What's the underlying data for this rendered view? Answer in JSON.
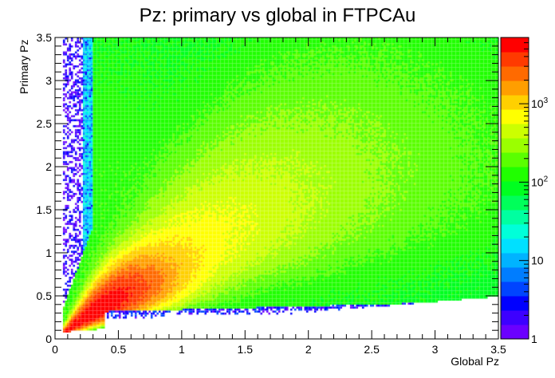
{
  "chart_data": {
    "type": "heatmap",
    "title": "Pz: primary vs global in FTPCAu",
    "xlabel": "Global Pz",
    "ylabel": "Primary Pz",
    "xlim": [
      0,
      3.5
    ],
    "ylim": [
      0,
      3.5
    ],
    "x_ticks": [
      "0",
      "0.5",
      "1",
      "1.5",
      "2",
      "2.5",
      "3",
      "3.5"
    ],
    "y_ticks": [
      "0",
      "0.5",
      "1",
      "1.5",
      "2",
      "2.5",
      "3",
      "3.5"
    ],
    "z_scale": "log",
    "z_range": [
      1,
      7000
    ],
    "z_ticks": [
      {
        "value": 1,
        "label": "1"
      },
      {
        "value": 10,
        "label": "10"
      },
      {
        "value": 100,
        "label": "10^2"
      },
      {
        "value": 1000,
        "label": "10^3"
      }
    ],
    "colorbar_position": "right",
    "palette": [
      "#6b00ff",
      "#3d00ff",
      "#0000ff",
      "#0044ff",
      "#007dff",
      "#00b3ff",
      "#00e0ff",
      "#00ffd9",
      "#00ffa0",
      "#00ff5a",
      "#00ff20",
      "#20ff00",
      "#5aff00",
      "#9bff00",
      "#ccff00",
      "#ffff00",
      "#ffd000",
      "#ff9e00",
      "#ff6a00",
      "#ff3a00",
      "#ff0000"
    ],
    "description_regions": [
      {
        "feature": "peak density along diagonal band",
        "x_range": [
          0.1,
          0.8
        ],
        "y_range": [
          0.1,
          0.8
        ],
        "approx_counts": 5000
      },
      {
        "feature": "broad band along primary = global",
        "x_range": [
          0.5,
          2.0
        ],
        "y_range": [
          0.5,
          2.0
        ],
        "approx_counts": 800
      },
      {
        "feature": "background fill",
        "x_range": [
          0.3,
          3.5
        ],
        "y_range": [
          0.4,
          3.5
        ],
        "approx_counts": 100
      },
      {
        "feature": "sparse vertical strip at low global Pz",
        "x_range": [
          0.0,
          0.35
        ],
        "y_range": [
          0.3,
          3.5
        ],
        "approx_counts": 1
      },
      {
        "feature": "sparse horizontal band at low primary Pz",
        "x_range": [
          0.5,
          3.5
        ],
        "y_range": [
          0.3,
          0.5
        ],
        "approx_counts": 3
      }
    ]
  }
}
